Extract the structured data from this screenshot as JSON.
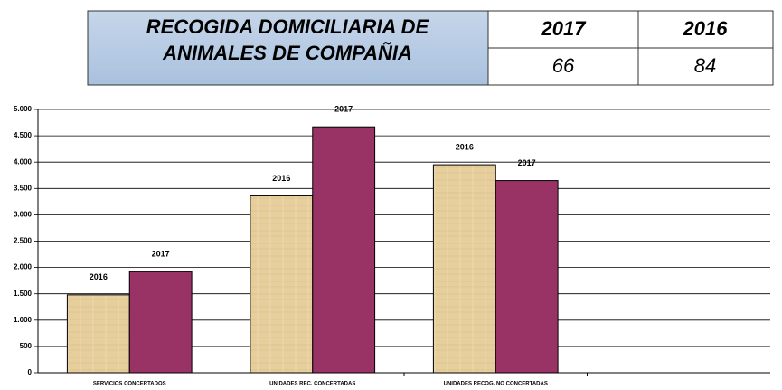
{
  "table": {
    "title": "RECOGIDA DOMICILIARIA DE ANIMALES DE COMPAÑIA",
    "columns": [
      "2017",
      "2016"
    ],
    "values": [
      66,
      84
    ]
  },
  "chart_data": {
    "type": "bar",
    "categories": [
      "SERVICIOS CONCERTADOS",
      "UNIDADES REC. CONCERTADAS",
      "UNIDADES RECOG. NO CONCERTADAS",
      null
    ],
    "series": [
      {
        "name": "2016",
        "color": "#e6cf9c",
        "values": [
          1480,
          3360,
          3950,
          null
        ]
      },
      {
        "name": "2017",
        "color": "#993366",
        "values": [
          1920,
          4670,
          3650,
          null
        ]
      }
    ],
    "ylim": [
      0,
      5000
    ],
    "yticks": [
      0,
      500,
      {
        "value": 1000,
        "label": "1.000"
      },
      {
        "value": 1500,
        "label": "1.500"
      },
      {
        "value": 2000,
        "label": "2.000"
      },
      {
        "value": 2500,
        "label": "2.500"
      },
      {
        "value": 3000,
        "label": "3.000"
      },
      {
        "value": 3500,
        "label": "3.500"
      },
      {
        "value": 4000,
        "label": "4.000"
      },
      {
        "value": 4500,
        "label": "4.500"
      },
      {
        "value": 5000,
        "label": "5.000"
      }
    ],
    "grid": true
  }
}
